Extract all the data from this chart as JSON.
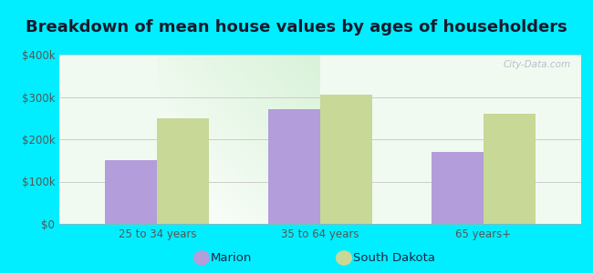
{
  "title": "Breakdown of mean house values by ages of householders",
  "categories": [
    "25 to 34 years",
    "35 to 64 years",
    "65 years+"
  ],
  "series": {
    "Marion": [
      150000,
      270000,
      170000
    ],
    "South Dakota": [
      250000,
      305000,
      260000
    ]
  },
  "bar_colors": {
    "Marion": "#b39ddb",
    "South Dakota": "#c8d896"
  },
  "ylim": [
    0,
    400000
  ],
  "yticks": [
    0,
    100000,
    200000,
    300000,
    400000
  ],
  "ytick_labels": [
    "$0",
    "$100k",
    "$200k",
    "$300k",
    "$400k"
  ],
  "background_outer": "#00eeff",
  "title_fontsize": 13,
  "legend_fontsize": 9.5,
  "tick_fontsize": 8.5,
  "bar_width": 0.32,
  "grid_color": "#cccccc",
  "title_color": "#1a1a2e",
  "tick_color": "#555555",
  "watermark": "City-Data.com"
}
